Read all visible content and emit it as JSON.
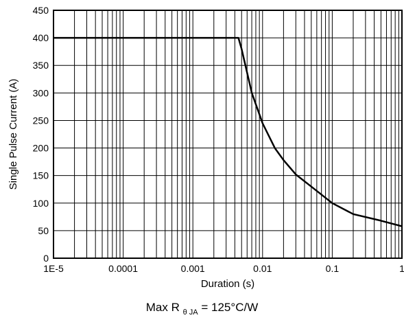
{
  "chart_data": {
    "type": "line",
    "x_scale": "log",
    "xlabel": "Duration (s)",
    "ylabel": "Single Pulse Current (A)",
    "xlim": [
      1e-05,
      1
    ],
    "ylim": [
      0,
      450
    ],
    "x_tick_values": [
      1e-05,
      0.0001,
      0.001,
      0.01,
      0.1,
      1
    ],
    "x_tick_labels": [
      "1E-5",
      "0.0001",
      "0.001",
      "0.01",
      "0.1",
      "1"
    ],
    "y_tick_values": [
      0,
      50,
      100,
      150,
      200,
      250,
      300,
      350,
      400,
      450
    ],
    "grid": true,
    "series": [
      {
        "x": [
          1e-05,
          0.0045,
          0.005,
          0.007,
          0.01,
          0.015,
          0.02,
          0.03,
          0.05,
          0.1,
          0.2,
          0.5,
          1
        ],
        "y": [
          400,
          400,
          380,
          300,
          245,
          200,
          178,
          152,
          130,
          100,
          80,
          68,
          58
        ]
      }
    ]
  },
  "footnote": {
    "prefix": "Max R",
    "subscript": "θ JA",
    "suffix": " = 125°C/W"
  }
}
